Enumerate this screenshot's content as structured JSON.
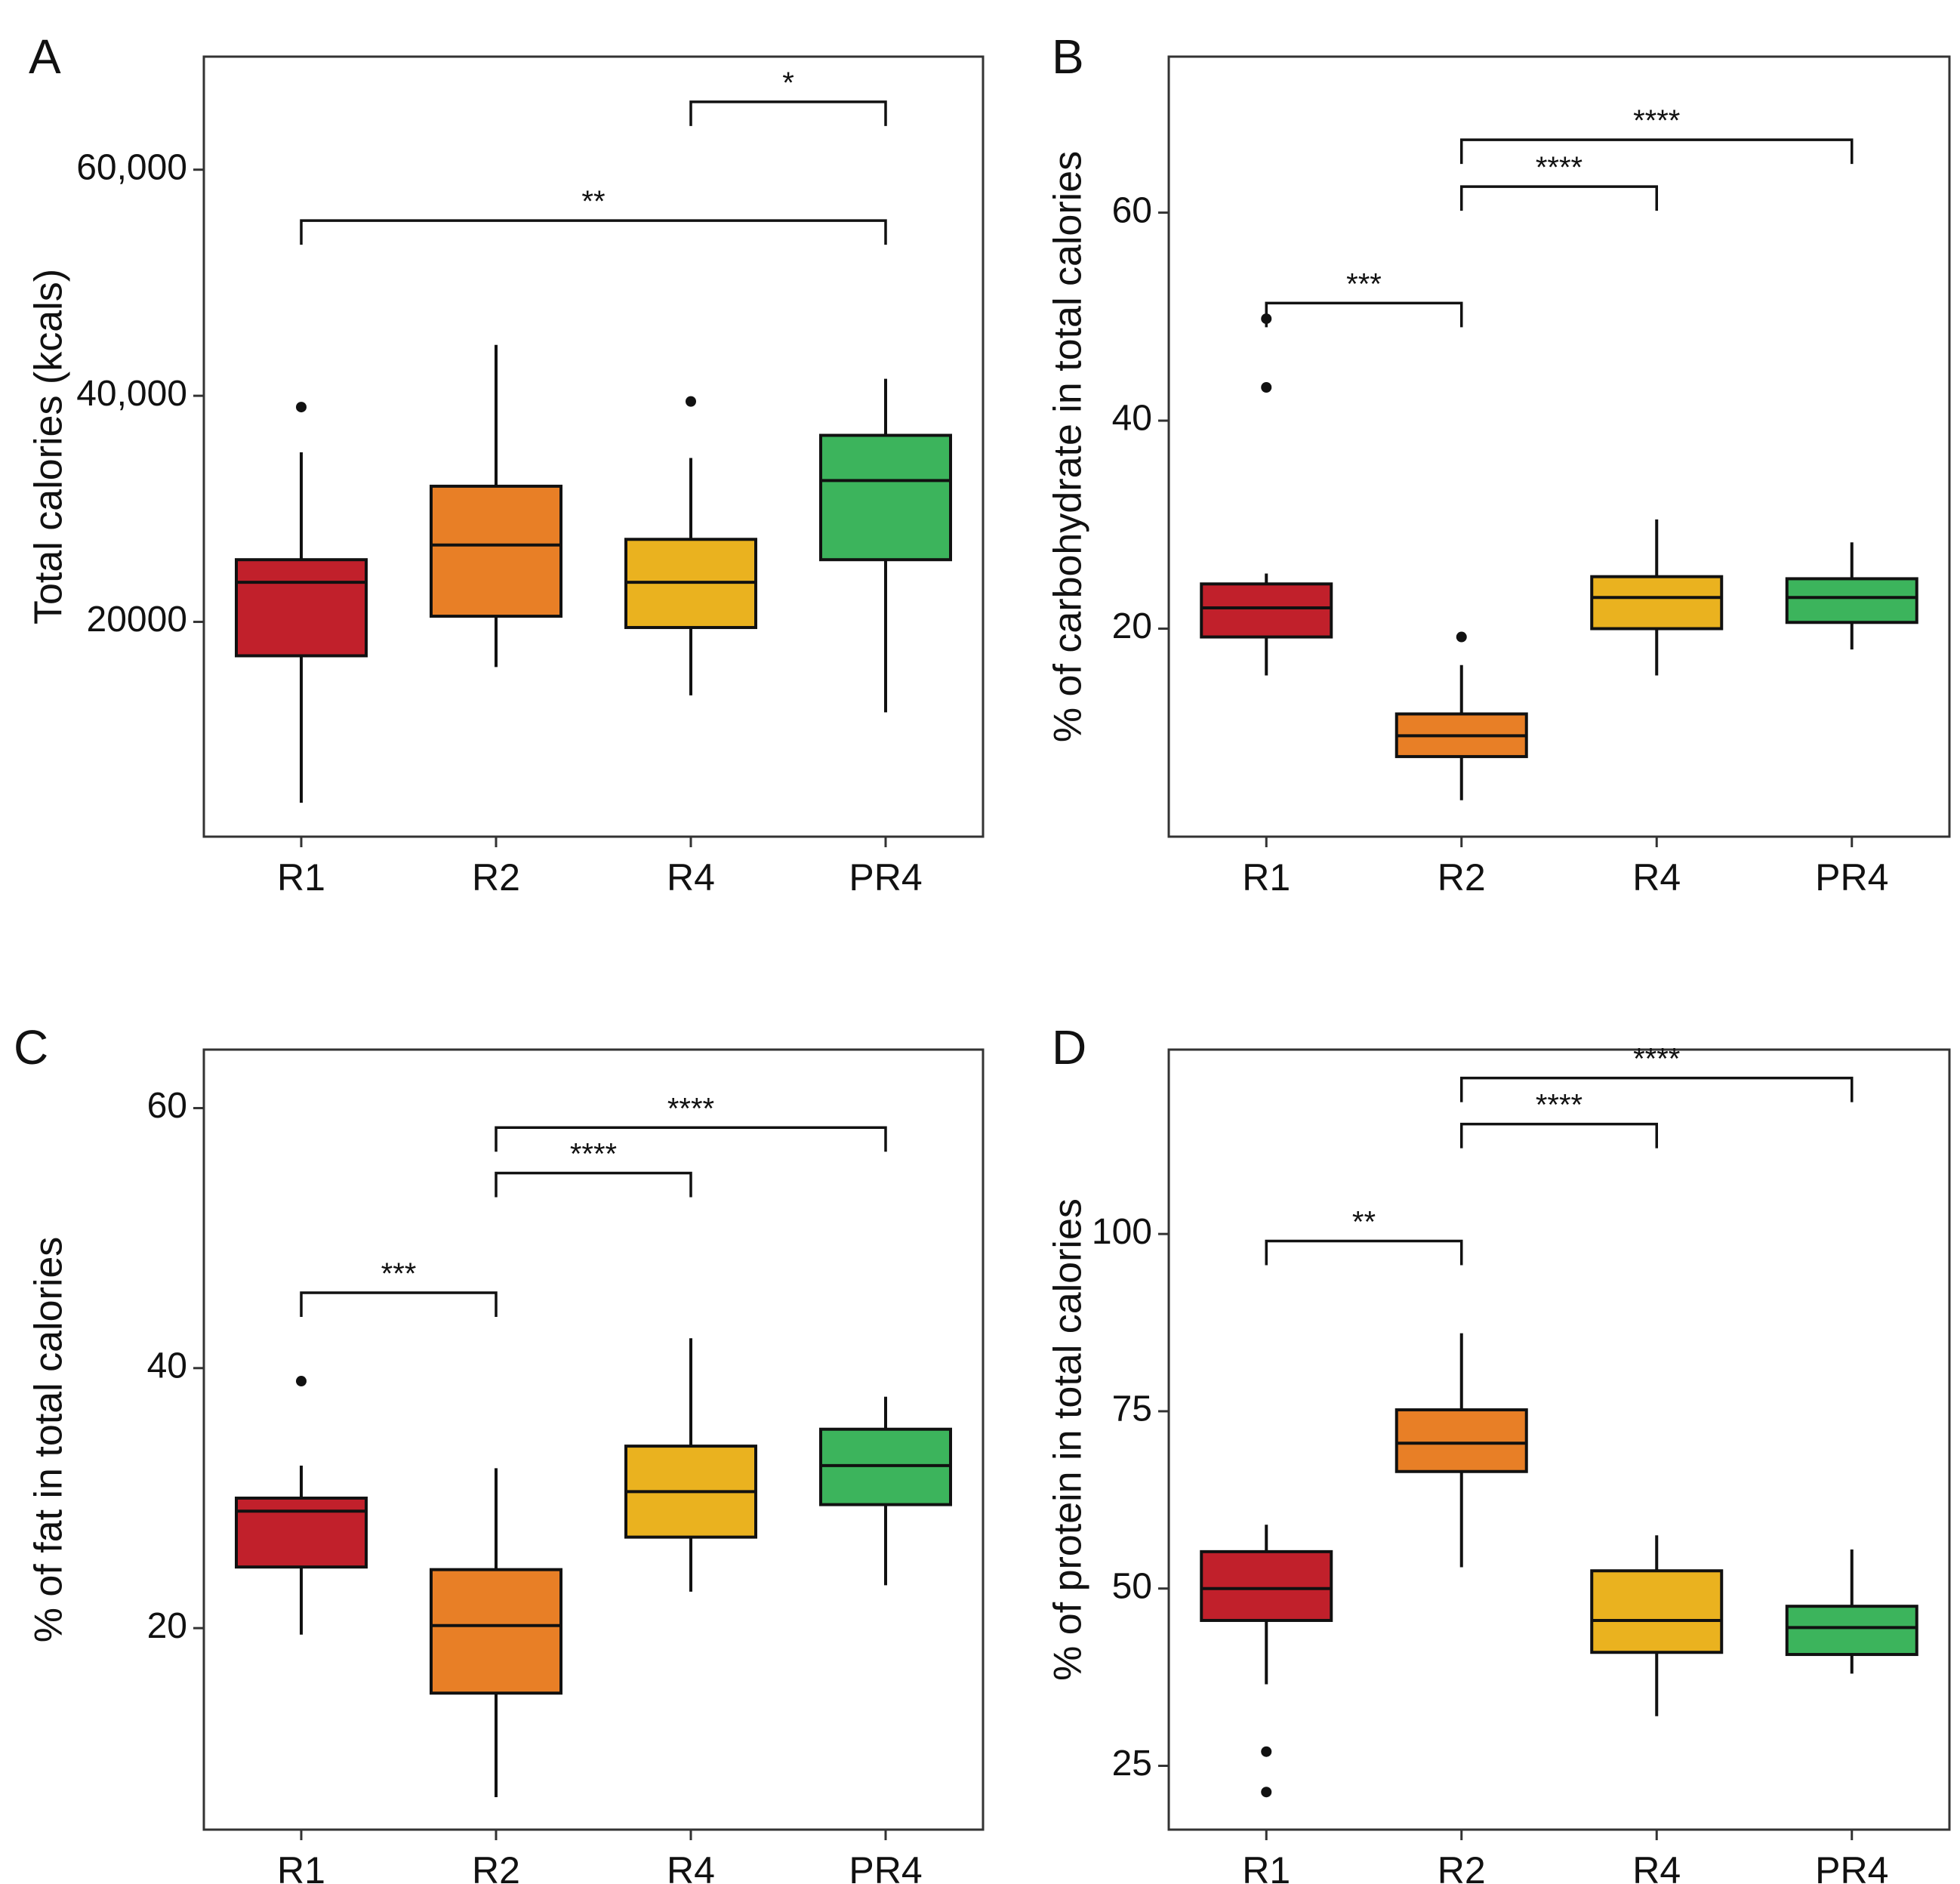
{
  "categories": [
    "R1",
    "R2",
    "R4",
    "PR4"
  ],
  "colors": {
    "R1": "#c1202b",
    "R2": "#e87f26",
    "R4": "#eab21f",
    "PR4": "#3cb45c",
    "stroke": "#111111",
    "frame": "#333333"
  },
  "chart_data": [
    {
      "panel": "A",
      "type": "box",
      "ylabel": "Total calories (kcals)",
      "ylim": [
        1000,
        70000
      ],
      "yticks": [
        20000,
        40000,
        60000
      ],
      "ytick_labels": [
        "20000",
        "40,000",
        "60,000"
      ],
      "series": [
        {
          "name": "R1",
          "whisker_low": 4000,
          "q1": 17000,
          "median": 23500,
          "q3": 25500,
          "whisker_high": 35000,
          "outliers": [
            39000
          ]
        },
        {
          "name": "R2",
          "whisker_low": 16000,
          "q1": 20500,
          "median": 26800,
          "q3": 32000,
          "whisker_high": 44500,
          "outliers": []
        },
        {
          "name": "R4",
          "whisker_low": 13500,
          "q1": 19500,
          "median": 23500,
          "q3": 27300,
          "whisker_high": 34500,
          "outliers": [
            39500
          ]
        },
        {
          "name": "PR4",
          "whisker_low": 12000,
          "q1": 25500,
          "median": 32500,
          "q3": 36500,
          "whisker_high": 41500,
          "outliers": []
        }
      ],
      "annotations": [
        {
          "from": "R4",
          "to": "PR4",
          "y": 66000,
          "label": "*"
        },
        {
          "from": "R1",
          "to": "PR4",
          "y": 55500,
          "label": "**"
        }
      ]
    },
    {
      "panel": "B",
      "type": "box",
      "ylabel": "% of carbohydrate in total calories",
      "ylim": [
        0,
        75
      ],
      "yticks": [
        20,
        40,
        60
      ],
      "ytick_labels": [
        "20",
        "40",
        "60"
      ],
      "series": [
        {
          "name": "R1",
          "whisker_low": 15.5,
          "q1": 19.2,
          "median": 22.0,
          "q3": 24.3,
          "whisker_high": 25.3,
          "outliers": [
            49.8,
            43.2
          ]
        },
        {
          "name": "R2",
          "whisker_low": 3.5,
          "q1": 7.7,
          "median": 9.7,
          "q3": 11.8,
          "whisker_high": 16.5,
          "outliers": [
            19.2
          ]
        },
        {
          "name": "R4",
          "whisker_low": 15.5,
          "q1": 20.0,
          "median": 23.0,
          "q3": 25.0,
          "whisker_high": 30.5,
          "outliers": []
        },
        {
          "name": "PR4",
          "whisker_low": 18.0,
          "q1": 20.6,
          "median": 23.0,
          "q3": 24.8,
          "whisker_high": 28.3,
          "outliers": []
        }
      ],
      "annotations": [
        {
          "from": "R2",
          "to": "PR4",
          "y": 67.0,
          "label": "****"
        },
        {
          "from": "R2",
          "to": "R4",
          "y": 62.5,
          "label": "****"
        },
        {
          "from": "R1",
          "to": "R2",
          "y": 51.3,
          "label": "***"
        }
      ]
    },
    {
      "panel": "C",
      "type": "box",
      "ylabel": "% of fat in total calories",
      "ylim": [
        4.5,
        64.5
      ],
      "yticks": [
        20,
        40,
        60
      ],
      "ytick_labels": [
        "20",
        "40",
        "60"
      ],
      "series": [
        {
          "name": "R1",
          "whisker_low": 19.5,
          "q1": 24.7,
          "median": 29.0,
          "q3": 30.0,
          "whisker_high": 32.5,
          "outliers": [
            39.0
          ]
        },
        {
          "name": "R2",
          "whisker_low": 7.0,
          "q1": 15.0,
          "median": 20.2,
          "q3": 24.5,
          "whisker_high": 32.3,
          "outliers": []
        },
        {
          "name": "R4",
          "whisker_low": 22.8,
          "q1": 27.0,
          "median": 30.5,
          "q3": 34.0,
          "whisker_high": 42.3,
          "outliers": []
        },
        {
          "name": "PR4",
          "whisker_low": 23.3,
          "q1": 29.5,
          "median": 32.5,
          "q3": 35.3,
          "whisker_high": 37.8,
          "outliers": []
        }
      ],
      "annotations": [
        {
          "from": "R2",
          "to": "PR4",
          "y": 58.5,
          "label": "****"
        },
        {
          "from": "R2",
          "to": "R4",
          "y": 55.0,
          "label": "****"
        },
        {
          "from": "R1",
          "to": "R2",
          "y": 45.8,
          "label": "***"
        }
      ]
    },
    {
      "panel": "D",
      "type": "box",
      "ylabel": "% of protein in total calories",
      "ylim": [
        16,
        126
      ],
      "yticks": [
        25,
        50,
        75,
        100
      ],
      "ytick_labels": [
        "25",
        "50",
        "75",
        "100"
      ],
      "series": [
        {
          "name": "R1",
          "whisker_low": 36.5,
          "q1": 45.5,
          "median": 50.0,
          "q3": 55.2,
          "whisker_high": 59.0,
          "outliers": [
            27.0,
            21.3
          ]
        },
        {
          "name": "R2",
          "whisker_low": 53.0,
          "q1": 66.5,
          "median": 70.5,
          "q3": 75.2,
          "whisker_high": 86.0,
          "outliers": []
        },
        {
          "name": "R4",
          "whisker_low": 32.0,
          "q1": 41.0,
          "median": 45.5,
          "q3": 52.5,
          "whisker_high": 57.5,
          "outliers": []
        },
        {
          "name": "PR4",
          "whisker_low": 38.0,
          "q1": 40.7,
          "median": 44.5,
          "q3": 47.5,
          "whisker_high": 55.5,
          "outliers": []
        }
      ],
      "annotations": [
        {
          "from": "R2",
          "to": "PR4",
          "y": 122.0,
          "label": "****"
        },
        {
          "from": "R2",
          "to": "R4",
          "y": 115.5,
          "label": "****"
        },
        {
          "from": "R1",
          "to": "R2",
          "y": 99.0,
          "label": "**"
        }
      ]
    }
  ]
}
